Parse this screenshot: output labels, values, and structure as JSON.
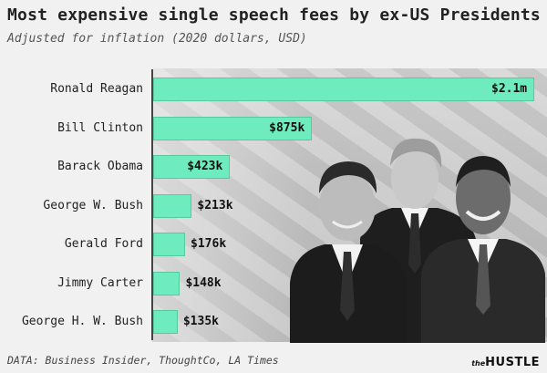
{
  "title": "Most expensive single speech fees by ex-US Presidents",
  "subtitle": "Adjusted for inflation (2020 dollars, USD)",
  "source": "DATA: Business Insider, ThoughtCo, LA Times",
  "logo": {
    "the": "the",
    "name": "HUSTLE"
  },
  "colors": {
    "bar": "#6eecc0",
    "bar_border": "#56c99f",
    "background": "#f1f1f1"
  },
  "chart_data": {
    "type": "bar",
    "orientation": "horizontal",
    "categories": [
      "Ronald Reagan",
      "Bill Clinton",
      "Barack Obama",
      "George W. Bush",
      "Gerald Ford",
      "Jimmy Carter",
      "George H. W. Bush"
    ],
    "values": [
      2100000,
      875000,
      423000,
      213000,
      176000,
      148000,
      135000
    ],
    "value_labels": [
      "$2.1m",
      "$875k",
      "$423k",
      "$213k",
      "$176k",
      "$148k",
      "$135k"
    ],
    "title": "Most expensive single speech fees by ex-US Presidents",
    "subtitle": "Adjusted for inflation (2020 dollars, USD)",
    "xlabel": "",
    "ylabel": "",
    "xlim": [
      0,
      2100000
    ],
    "grid": false,
    "legend": "none"
  }
}
